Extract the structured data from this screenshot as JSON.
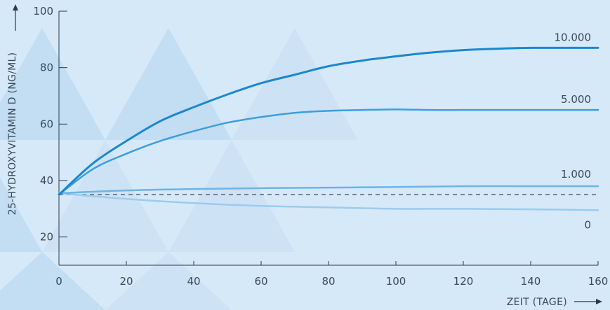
{
  "chart_data": {
    "type": "line",
    "xlabel": "ZEIT (TAGE)",
    "ylabel": "25-HYDROXYVITAMIN D (NG/ML)",
    "xlim": [
      0,
      160
    ],
    "ylim": [
      10,
      100
    ],
    "x_ticks": [
      0,
      20,
      40,
      60,
      80,
      100,
      120,
      140,
      160
    ],
    "y_ticks": [
      20,
      40,
      60,
      80,
      100
    ],
    "x_tick_labels": [
      "0",
      "20",
      "40",
      "60",
      "80",
      "100",
      "120",
      "140",
      "160"
    ],
    "y_tick_labels": [
      "20",
      "40",
      "60",
      "80",
      "100"
    ],
    "grid": false,
    "reference_line": {
      "y": 35,
      "style": "dashed"
    },
    "series": [
      {
        "name": "10.000",
        "color": "#1b87cf",
        "width": 3,
        "x": [
          0,
          10,
          20,
          30,
          40,
          50,
          60,
          70,
          80,
          90,
          100,
          110,
          120,
          130,
          140,
          150,
          160
        ],
        "y": [
          35,
          46,
          54,
          61,
          66,
          70.5,
          74.5,
          77.5,
          80.5,
          82.5,
          84,
          85.3,
          86.2,
          86.7,
          87,
          87,
          87
        ]
      },
      {
        "name": "5.000",
        "color": "#3c9ede",
        "width": 2.5,
        "x": [
          0,
          10,
          20,
          30,
          40,
          50,
          60,
          70,
          80,
          90,
          100,
          110,
          120,
          130,
          140,
          150,
          160
        ],
        "y": [
          35,
          44,
          49.5,
          54,
          57.5,
          60.5,
          62.5,
          64,
          64.7,
          65,
          65.2,
          65,
          65,
          65,
          65,
          65,
          65
        ]
      },
      {
        "name": "1.000",
        "color": "#6bb5e6",
        "width": 2.5,
        "x": [
          0,
          20,
          40,
          60,
          80,
          100,
          120,
          140,
          160
        ],
        "y": [
          35.5,
          36.5,
          37,
          37.3,
          37.5,
          37.7,
          38,
          38,
          38
        ]
      },
      {
        "name": "0",
        "color": "#9ccbee",
        "width": 2.5,
        "x": [
          0,
          20,
          40,
          60,
          80,
          100,
          120,
          140,
          160
        ],
        "y": [
          35.5,
          33.5,
          32,
          31,
          30.5,
          30,
          30,
          29.8,
          29.5
        ]
      }
    ]
  }
}
